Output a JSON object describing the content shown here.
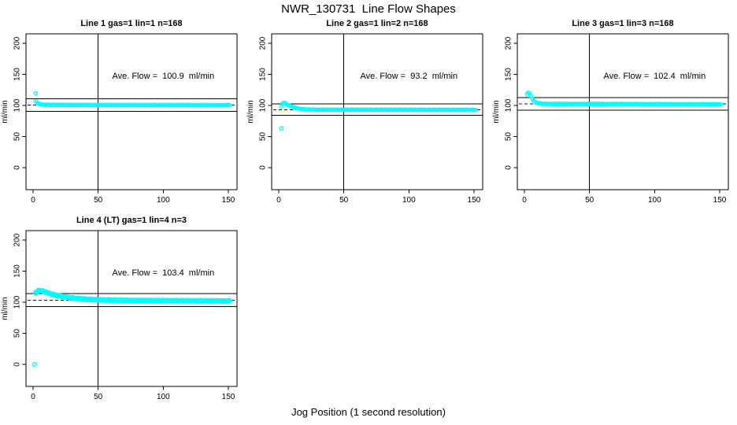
{
  "figure_title": "NWR_130731  Line Flow Shapes",
  "xlabel_shared": "Jog Position (1 second resolution)",
  "palette": {
    "marker": "#00FFFF",
    "mean_dashed_line": "#0000BB",
    "axis": "#000000",
    "background": "#FFFFFF"
  },
  "chart_data": [
    {
      "type": "scatter",
      "title": "Line 1 gas=1 lin=1 n=168",
      "annotation": "Ave. Flow =  100.9  ml/min",
      "annotation_xy": [
        100,
        148
      ],
      "ave_flow": 100.9,
      "ylabel": "ml/min",
      "xlim": [
        0,
        150
      ],
      "ylim": [
        0,
        200
      ],
      "x_ticks": [
        0,
        50,
        100,
        150
      ],
      "y_ticks": [
        0,
        50,
        100,
        150,
        200
      ],
      "vline_x": 50,
      "hlines": [
        111.0,
        90.8
      ],
      "mean_line_y": 100.9,
      "marker_color": "#00FFFF",
      "marker_radius": 2.1,
      "jitter": 0.3,
      "points_per_x": 1,
      "x_start": 2,
      "x_end": 151,
      "anchors": [
        [
          2,
          107
        ],
        [
          3,
          104.5
        ],
        [
          4,
          103
        ],
        [
          5,
          102.3
        ],
        [
          6,
          101.8
        ],
        [
          8,
          101.3
        ],
        [
          12,
          101
        ],
        [
          20,
          100.9
        ],
        [
          40,
          100.8
        ],
        [
          80,
          100.7
        ],
        [
          120,
          100.6
        ],
        [
          151,
          100.5
        ]
      ],
      "outliers": [
        [
          2,
          119.5
        ]
      ]
    },
    {
      "type": "scatter",
      "title": "Line 2 gas=1 lin=2 n=168",
      "annotation": "Ave. Flow =  93.2  ml/min",
      "annotation_xy": [
        100,
        148
      ],
      "ave_flow": 93.2,
      "ylabel": "ml/min",
      "xlim": [
        0,
        150
      ],
      "ylim": [
        0,
        200
      ],
      "x_ticks": [
        0,
        50,
        100,
        150
      ],
      "y_ticks": [
        0,
        50,
        100,
        150,
        200
      ],
      "vline_x": 50,
      "hlines": [
        102.5,
        83.9
      ],
      "mean_line_y": 93.2,
      "marker_color": "#00FFFF",
      "marker_radius": 2.1,
      "jitter": 0.3,
      "points_per_x": 1,
      "x_start": 2,
      "x_end": 151,
      "anchors": [
        [
          2,
          98
        ],
        [
          3,
          103
        ],
        [
          4,
          104
        ],
        [
          5,
          103.5
        ],
        [
          6,
          102
        ],
        [
          8,
          99.8
        ],
        [
          10,
          98
        ],
        [
          12,
          96.5
        ],
        [
          15,
          95
        ],
        [
          18,
          94
        ],
        [
          22,
          93.5
        ],
        [
          28,
          93.2
        ],
        [
          60,
          93.2
        ],
        [
          100,
          93.1
        ],
        [
          151,
          93
        ]
      ],
      "outliers": [
        [
          2,
          63
        ]
      ]
    },
    {
      "type": "scatter",
      "title": "Line 3 gas=1 lin=3 n=168",
      "annotation": "Ave. Flow =  102.4  ml/min",
      "annotation_xy": [
        100,
        148
      ],
      "ave_flow": 102.4,
      "ylabel": "ml/min",
      "xlim": [
        0,
        150
      ],
      "ylim": [
        0,
        200
      ],
      "x_ticks": [
        0,
        50,
        100,
        150
      ],
      "y_ticks": [
        0,
        50,
        100,
        150,
        200
      ],
      "vline_x": 50,
      "hlines": [
        112.6,
        92.2
      ],
      "mean_line_y": 102.4,
      "marker_color": "#00FFFF",
      "marker_radius": 2.1,
      "jitter": 0.3,
      "points_per_x": 1,
      "x_start": 2,
      "x_end": 151,
      "anchors": [
        [
          2,
          118
        ],
        [
          3,
          121
        ],
        [
          4,
          119
        ],
        [
          5,
          115
        ],
        [
          6,
          111
        ],
        [
          7,
          108
        ],
        [
          8,
          106
        ],
        [
          9,
          104.8
        ],
        [
          10,
          104
        ],
        [
          12,
          103.2
        ],
        [
          15,
          102.7
        ],
        [
          20,
          102.4
        ],
        [
          60,
          102.3
        ],
        [
          100,
          102.2
        ],
        [
          151,
          101.9
        ]
      ],
      "outliers": []
    },
    {
      "type": "scatter",
      "title": "Line 4 (LT) gas=1 lin=4 n=3",
      "annotation": "Ave. Flow =  103.4  ml/min",
      "annotation_xy": [
        100,
        148
      ],
      "ave_flow": 103.4,
      "ylabel": "ml/min",
      "xlim": [
        0,
        150
      ],
      "ylim": [
        0,
        200
      ],
      "x_ticks": [
        0,
        50,
        100,
        150
      ],
      "y_ticks": [
        0,
        50,
        100,
        150,
        200
      ],
      "vline_x": 50,
      "hlines": [
        113.7,
        93.1
      ],
      "mean_line_y": 103.4,
      "marker_color": "#00FFFF",
      "marker_radius": 2.4,
      "jitter": 0.9,
      "points_per_x": 3,
      "x_start": 2,
      "x_end": 151,
      "anchors": [
        [
          2,
          115
        ],
        [
          3,
          117
        ],
        [
          4,
          118.5
        ],
        [
          5,
          119
        ],
        [
          6,
          118.7
        ],
        [
          8,
          117.5
        ],
        [
          10,
          116
        ],
        [
          12,
          114.5
        ],
        [
          15,
          112.5
        ],
        [
          18,
          111
        ],
        [
          22,
          109.3
        ],
        [
          26,
          108
        ],
        [
          30,
          106.8
        ],
        [
          35,
          105.8
        ],
        [
          40,
          105
        ],
        [
          45,
          104.4
        ],
        [
          50,
          104
        ],
        [
          60,
          103.4
        ],
        [
          70,
          103
        ],
        [
          85,
          102.7
        ],
        [
          100,
          102.6
        ],
        [
          120,
          102.3
        ],
        [
          135,
          102.2
        ],
        [
          151,
          101.8
        ]
      ],
      "outliers": [
        [
          1,
          0
        ]
      ]
    }
  ]
}
